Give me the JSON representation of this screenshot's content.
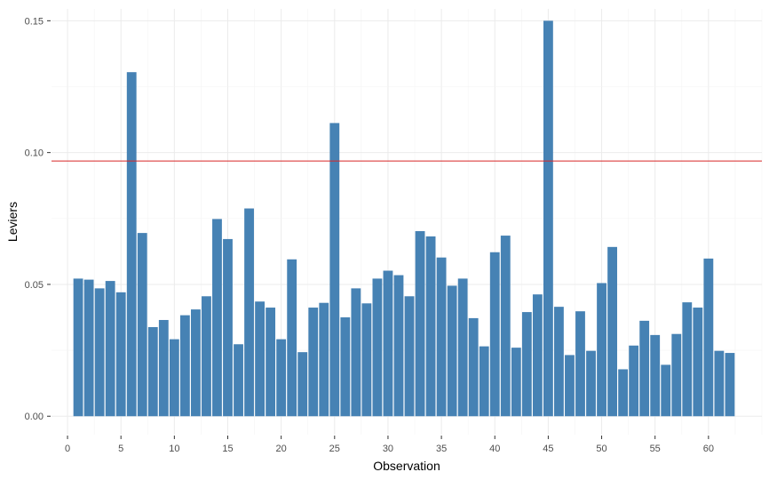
{
  "chart_data": {
    "type": "bar",
    "xlabel": "Observation",
    "ylabel": "Leviers",
    "x": [
      1,
      2,
      3,
      4,
      5,
      6,
      7,
      8,
      9,
      10,
      11,
      12,
      13,
      14,
      15,
      16,
      17,
      18,
      19,
      20,
      21,
      22,
      23,
      24,
      25,
      26,
      27,
      28,
      29,
      30,
      31,
      32,
      33,
      34,
      35,
      36,
      37,
      38,
      39,
      40,
      41,
      42,
      43,
      44,
      45,
      46,
      47,
      48,
      49,
      50,
      51,
      52,
      53,
      54,
      55,
      56,
      57,
      58,
      59,
      60,
      61,
      62
    ],
    "values": [
      0.0522,
      0.0518,
      0.0485,
      0.0513,
      0.047,
      0.1305,
      0.0695,
      0.0338,
      0.0365,
      0.0292,
      0.0383,
      0.0405,
      0.0455,
      0.0748,
      0.0672,
      0.0273,
      0.0788,
      0.0435,
      0.0412,
      0.0292,
      0.0595,
      0.0243,
      0.0412,
      0.043,
      0.1112,
      0.0375,
      0.0485,
      0.0428,
      0.0522,
      0.0552,
      0.0535,
      0.0455,
      0.0702,
      0.0682,
      0.0602,
      0.0495,
      0.0522,
      0.0372,
      0.0265,
      0.0622,
      0.0685,
      0.026,
      0.0395,
      0.0462,
      0.15,
      0.0415,
      0.0232,
      0.0398,
      0.0248,
      0.0505,
      0.0642,
      0.0178,
      0.0268,
      0.0362,
      0.0308,
      0.0195,
      0.0312,
      0.0432,
      0.0412,
      0.0598,
      0.0248,
      0.024
    ],
    "hline": 0.0968,
    "xlim": [
      -1.5,
      65
    ],
    "ylim": [
      -0.007,
      0.1545
    ],
    "x_ticks": [
      0,
      5,
      10,
      15,
      20,
      25,
      30,
      35,
      40,
      45,
      50,
      55,
      60
    ],
    "y_ticks": [
      0.0,
      0.05,
      0.1,
      0.15
    ],
    "y_tick_labels": [
      "0.00",
      "0.05",
      "0.10",
      "0.15"
    ],
    "grid": true,
    "colors": {
      "bar": "#4682B4",
      "hline": "#D62728",
      "grid_major": "#EBEBEB",
      "grid_minor": "#F4F4F4"
    }
  }
}
